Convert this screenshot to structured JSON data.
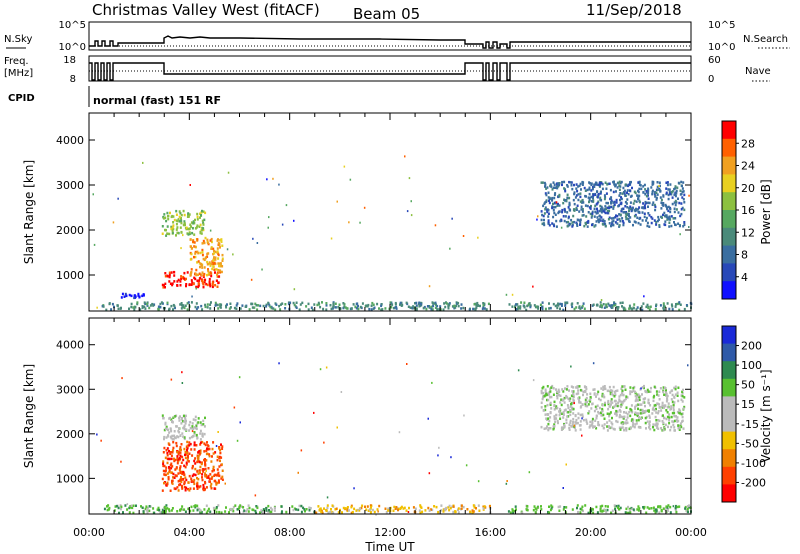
{
  "header": {
    "title": "Christmas Valley West (fitACF)",
    "beam": "Beam 05",
    "date": "11/Sep/2018"
  },
  "summary_panel": {
    "nsky_label": "N.Sky",
    "nsky_top": "10^5",
    "nsky_bottom": "10^0",
    "nsearch_label": "N.Search",
    "nsearch_top": "10^5",
    "nsearch_bottom": "10^0",
    "freq_label": "Freq.",
    "freq_unit": "[MHz]",
    "freq_top": "18",
    "freq_bottom": "8",
    "nave_label": "Nave",
    "nave_top": "60",
    "nave_bottom": "0",
    "cpid_label": "CPID",
    "cpid_value": "normal (fast) 151 RF"
  },
  "colors": {
    "power_scale": [
      "#1010ff",
      "#2848b8",
      "#3a6ea0",
      "#4a8a7a",
      "#56a860",
      "#8cc040",
      "#e8d020",
      "#f0a020",
      "#ff6000",
      "#ff0000"
    ],
    "velocity_scale": [
      "#1a2ad8",
      "#2f5aa8",
      "#2e8a50",
      "#58c030",
      "#bbbbbb",
      "#bbbbbb",
      "#f0c000",
      "#f08000",
      "#ff4000",
      "#ff0000"
    ]
  },
  "chart_data": [
    {
      "type": "heatmap",
      "name": "power",
      "ylabel": "Slant Range [km]",
      "ylim": [
        200,
        4600
      ],
      "yticks": [
        "1000",
        "2000",
        "3000",
        "4000"
      ],
      "xlim_hours": [
        0,
        24
      ],
      "colorbar": {
        "label": "Power [dB]",
        "ticks": [
          "4",
          "8",
          "12",
          "16",
          "20",
          "24",
          "28"
        ],
        "range": [
          0,
          32
        ]
      },
      "regions": [
        {
          "t0": 2.9,
          "t1": 4.6,
          "r0": 1900,
          "r1": 2450,
          "color_index": 5
        },
        {
          "t0": 2.9,
          "t1": 5.2,
          "r0": 750,
          "r1": 1100,
          "color_index": 9
        },
        {
          "t0": 4.0,
          "t1": 5.3,
          "r0": 1000,
          "r1": 1850,
          "color_index": 7
        },
        {
          "t0": 1.2,
          "t1": 2.3,
          "r0": 520,
          "r1": 610,
          "color_index": 0
        },
        {
          "t0": 0.5,
          "t1": 16.0,
          "r0": 250,
          "r1": 420,
          "color_index": 3
        },
        {
          "t0": 16.7,
          "t1": 24.0,
          "r0": 250,
          "r1": 420,
          "color_index": 3
        },
        {
          "t0": 18.0,
          "t1": 23.7,
          "r0": 2100,
          "r1": 3100,
          "color_index": 2
        }
      ]
    },
    {
      "type": "heatmap",
      "name": "velocity",
      "ylabel": "Slant Range [km]",
      "ylim": [
        200,
        4600
      ],
      "yticks": [
        "1000",
        "2000",
        "3000",
        "4000"
      ],
      "xlabel": "Time UT",
      "xticks": [
        "00:00",
        "04:00",
        "08:00",
        "12:00",
        "16:00",
        "20:00",
        "00:00"
      ],
      "colorbar": {
        "label": "Velocity [m s⁻¹]",
        "ticks": [
          "200",
          "100",
          "50",
          "15",
          "-15",
          "-50",
          "-100",
          "-200"
        ]
      },
      "regions": [
        {
          "t0": 2.9,
          "t1": 4.6,
          "r0": 1900,
          "r1": 2450,
          "color_index": 4
        },
        {
          "t0": 2.9,
          "t1": 5.3,
          "r0": 750,
          "r1": 1850,
          "color_index": 8
        },
        {
          "t0": 0.5,
          "t1": 9.0,
          "r0": 250,
          "r1": 420,
          "color_index": 3
        },
        {
          "t0": 9.0,
          "t1": 16.0,
          "r0": 250,
          "r1": 420,
          "color_index": 6
        },
        {
          "t0": 16.7,
          "t1": 24.0,
          "r0": 250,
          "r1": 420,
          "color_index": 3
        },
        {
          "t0": 18.0,
          "t1": 23.7,
          "r0": 2100,
          "r1": 3100,
          "color_index": 4
        }
      ]
    }
  ]
}
